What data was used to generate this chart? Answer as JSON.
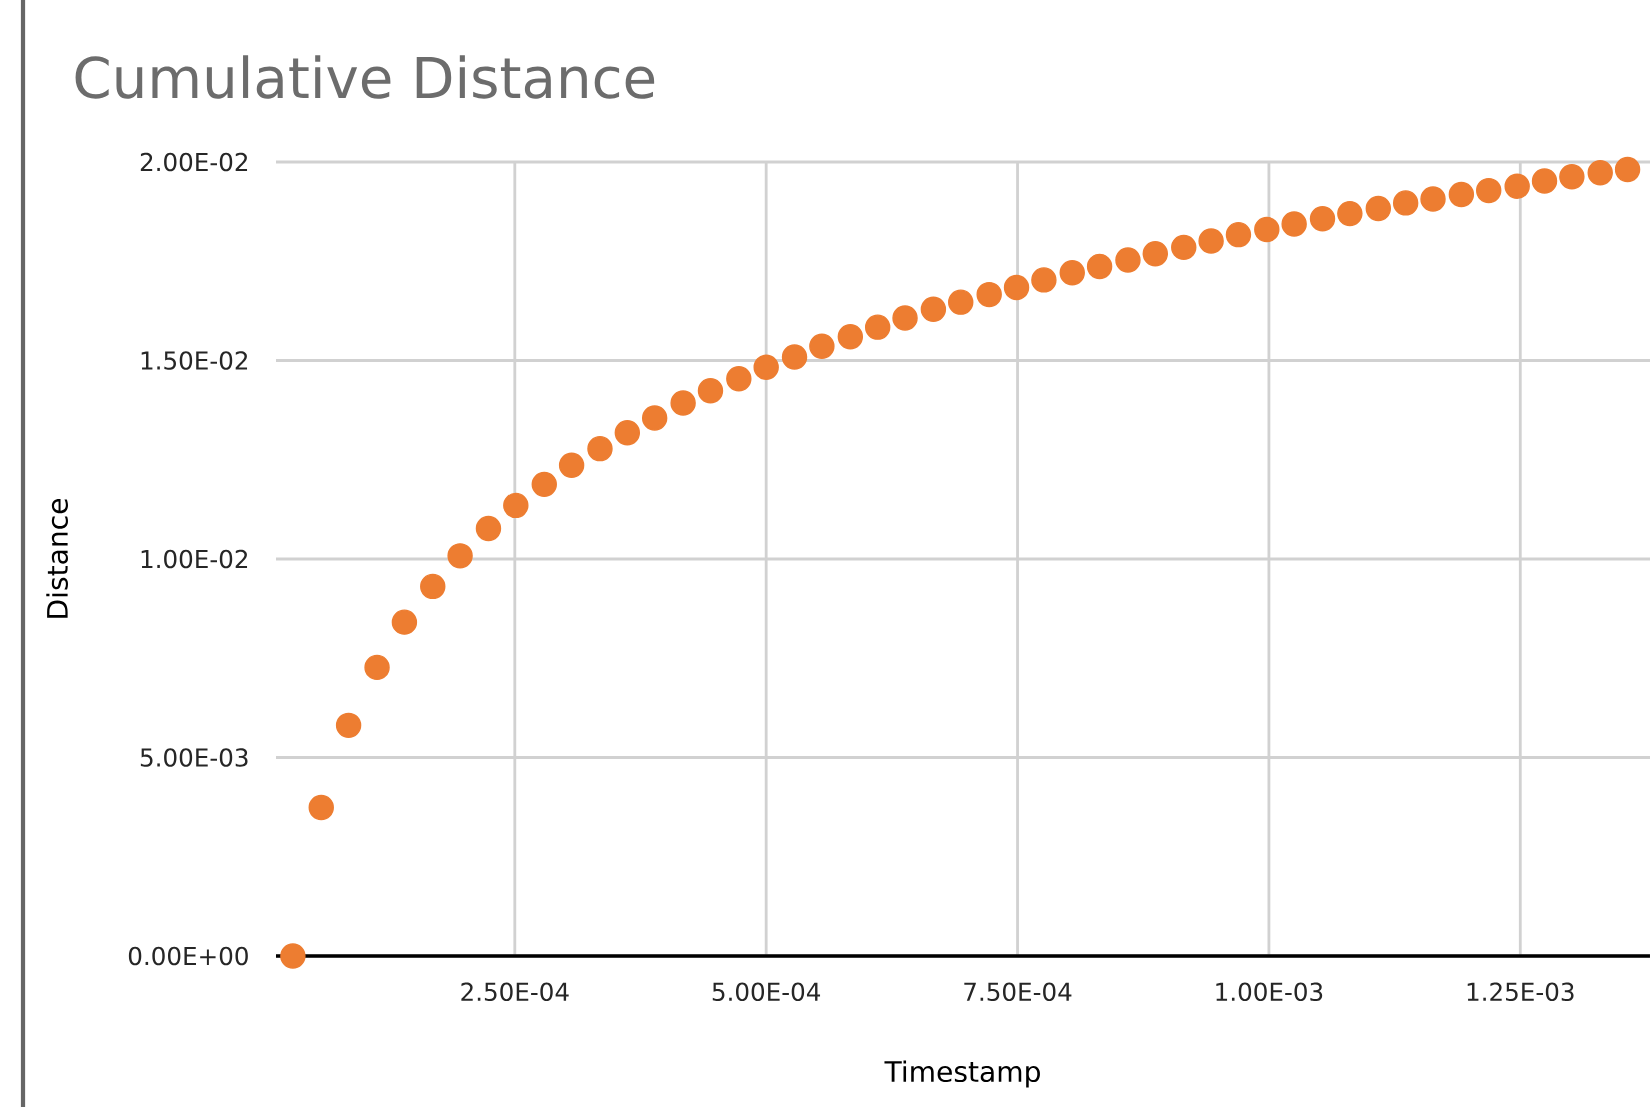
{
  "chart_data": {
    "type": "scatter",
    "title": "Cumulative Distance",
    "xlabel": "Timestamp",
    "ylabel": "Distance",
    "x": [
      2.93e-05,
      5.75e-05,
      8.47e-05,
      0.000113,
      0.0001402,
      0.0001684,
      0.0001956,
      0.0002238,
      0.000251,
      0.0002793,
      0.0003065,
      0.0003347,
      0.0003619,
      0.0003891,
      0.0004174,
      0.0004446,
      0.0004728,
      0.0005,
      0.0005282,
      0.0005554,
      0.0005837,
      0.0006109,
      0.0006381,
      0.0006663,
      0.0006935,
      0.0007218,
      0.000749,
      0.0007762,
      0.0008044,
      0.0008316,
      0.0008598,
      0.000887,
      0.0009153,
      0.0009425,
      0.0009697,
      0.0009979,
      0.0010251,
      0.0010533,
      0.0010805,
      0.0011088,
      0.001136,
      0.0011632,
      0.0011914,
      0.0012186,
      0.0012469,
      0.0012741,
      0.0013013,
      0.0013295,
      0.0013567
    ],
    "series": [
      {
        "color": "#ed7d31",
        "values": [
          0,
          0.00374,
          0.00581,
          0.00727,
          0.00841,
          0.00931,
          0.01008,
          0.01077,
          0.01135,
          0.01188,
          0.01236,
          0.01278,
          0.01318,
          0.01355,
          0.01393,
          0.01424,
          0.01454,
          0.01483,
          0.01509,
          0.01536,
          0.0156,
          0.01584,
          0.01607,
          0.01629,
          0.01647,
          0.01666,
          0.01684,
          0.01703,
          0.01721,
          0.01737,
          0.01753,
          0.01769,
          0.01785,
          0.01801,
          0.01817,
          0.0183,
          0.01844,
          0.01857,
          0.0187,
          0.01883,
          0.01897,
          0.01907,
          0.01918,
          0.01928,
          0.01939,
          0.01952,
          0.01963,
          0.01973,
          0.01981
        ]
      }
    ],
    "xlim": [
      1.25e-05,
      0.001379
    ],
    "xticks": [
      {
        "value": 0.00025,
        "label": "2.50E-04"
      },
      {
        "value": 0.0005,
        "label": "5.00E-04"
      },
      {
        "value": 0.00075,
        "label": "7.50E-04"
      },
      {
        "value": 0.001,
        "label": "1.00E-03"
      },
      {
        "value": 0.00125,
        "label": "1.25E-03"
      }
    ],
    "ylim": [
      0,
      0.02
    ],
    "yticks": [
      {
        "value": 0,
        "label": "0.00E+00"
      },
      {
        "value": 0.005,
        "label": "5.00E-03"
      },
      {
        "value": 0.01,
        "label": "1.00E-02"
      },
      {
        "value": 0.015,
        "label": "1.50E-02"
      },
      {
        "value": 0.02,
        "label": "2.00E-02"
      }
    ],
    "grid": true,
    "marker": "circle"
  }
}
